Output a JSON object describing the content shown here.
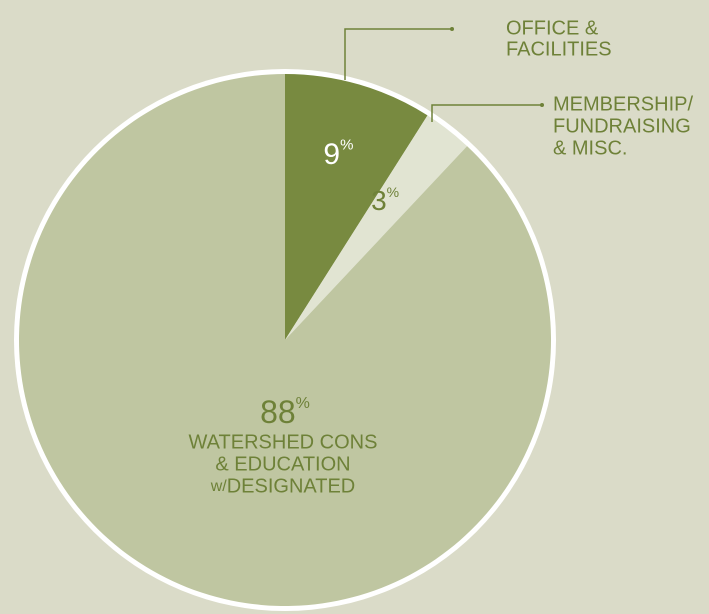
{
  "chart_data": {
    "type": "pie",
    "slices": [
      {
        "value": 9,
        "unit": "%",
        "label_lines": [
          "OFFICE &",
          "FACILITIES"
        ],
        "color": "#788a40"
      },
      {
        "value": 3,
        "unit": "%",
        "label_lines": [
          "MEMBERSHIP/",
          "FUNDRAISING",
          "& MISC."
        ],
        "color": "#e1e4d2"
      },
      {
        "value": 88,
        "unit": "%",
        "label_lines": [
          "WATERSHED CONS",
          "& EDUCATION",
          "w/DESIGNATED"
        ],
        "color": "#bfc6a1"
      }
    ],
    "start_angle_deg": 0,
    "direction": "clockwise",
    "legend": "callout labels beside slices",
    "colors": {
      "background": "#dadbc8",
      "outline": "#ffffff",
      "text_dark": "#6e8138",
      "text_on_dark": "#ffffff",
      "leader_line": "#6e8138"
    }
  }
}
